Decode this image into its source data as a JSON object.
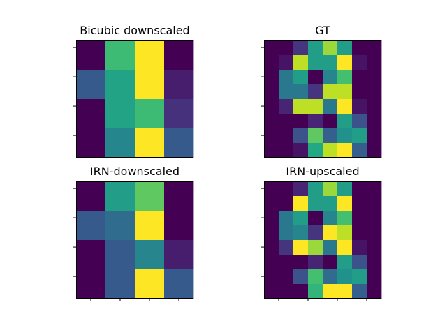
{
  "colormap": "viridis",
  "chart_data": [
    {
      "type": "heatmap",
      "title": "Bicubic downscaled",
      "rows": 4,
      "cols": 4,
      "values": [
        [
          0.0,
          0.68,
          1.0,
          0.0
        ],
        [
          0.28,
          0.58,
          1.0,
          0.08
        ],
        [
          0.0,
          0.58,
          0.68,
          0.14
        ],
        [
          0.0,
          0.46,
          1.0,
          0.28
        ]
      ]
    },
    {
      "type": "heatmap",
      "title": "GT",
      "rows": 8,
      "cols": 8,
      "values": [
        [
          0.0,
          0.0,
          0.15,
          0.55,
          0.85,
          0.55,
          0.0,
          0.0
        ],
        [
          0.0,
          0.05,
          0.9,
          0.55,
          0.55,
          1.0,
          0.05,
          0.0
        ],
        [
          0.0,
          0.4,
          0.55,
          0.0,
          0.45,
          0.7,
          0.0,
          0.0
        ],
        [
          0.0,
          0.4,
          0.4,
          0.15,
          0.9,
          0.9,
          0.0,
          0.0
        ],
        [
          0.0,
          0.1,
          0.9,
          0.9,
          0.4,
          1.0,
          0.05,
          0.0
        ],
        [
          0.0,
          0.0,
          0.0,
          0.1,
          0.0,
          0.55,
          0.25,
          0.0
        ],
        [
          0.0,
          0.0,
          0.25,
          0.75,
          0.3,
          0.5,
          0.55,
          0.0
        ],
        [
          0.0,
          0.0,
          0.05,
          0.6,
          0.9,
          1.0,
          0.3,
          0.0
        ]
      ]
    },
    {
      "type": "heatmap",
      "title": "IRN-downscaled",
      "rows": 4,
      "cols": 4,
      "values": [
        [
          0.0,
          0.55,
          0.75,
          0.0
        ],
        [
          0.28,
          0.35,
          1.0,
          0.0
        ],
        [
          0.0,
          0.28,
          0.45,
          0.08
        ],
        [
          0.0,
          0.28,
          1.0,
          0.28
        ]
      ]
    },
    {
      "type": "heatmap",
      "title": "IRN-upscaled",
      "rows": 8,
      "cols": 8,
      "values": [
        [
          0.0,
          0.0,
          0.1,
          0.55,
          0.85,
          0.55,
          0.0,
          0.0
        ],
        [
          0.0,
          0.0,
          1.0,
          0.55,
          0.55,
          1.0,
          0.0,
          0.0
        ],
        [
          0.0,
          0.4,
          0.55,
          0.0,
          0.45,
          0.7,
          0.0,
          0.0
        ],
        [
          0.0,
          0.4,
          0.45,
          0.15,
          1.0,
          0.9,
          0.0,
          0.0
        ],
        [
          0.0,
          0.15,
          1.0,
          0.85,
          0.4,
          1.0,
          0.05,
          0.0
        ],
        [
          0.0,
          0.0,
          0.0,
          0.1,
          0.0,
          0.55,
          0.25,
          0.0
        ],
        [
          0.0,
          0.0,
          0.25,
          0.7,
          0.35,
          0.5,
          0.55,
          0.0
        ],
        [
          0.0,
          0.0,
          0.0,
          0.65,
          1.0,
          1.0,
          0.3,
          0.0
        ]
      ]
    }
  ]
}
